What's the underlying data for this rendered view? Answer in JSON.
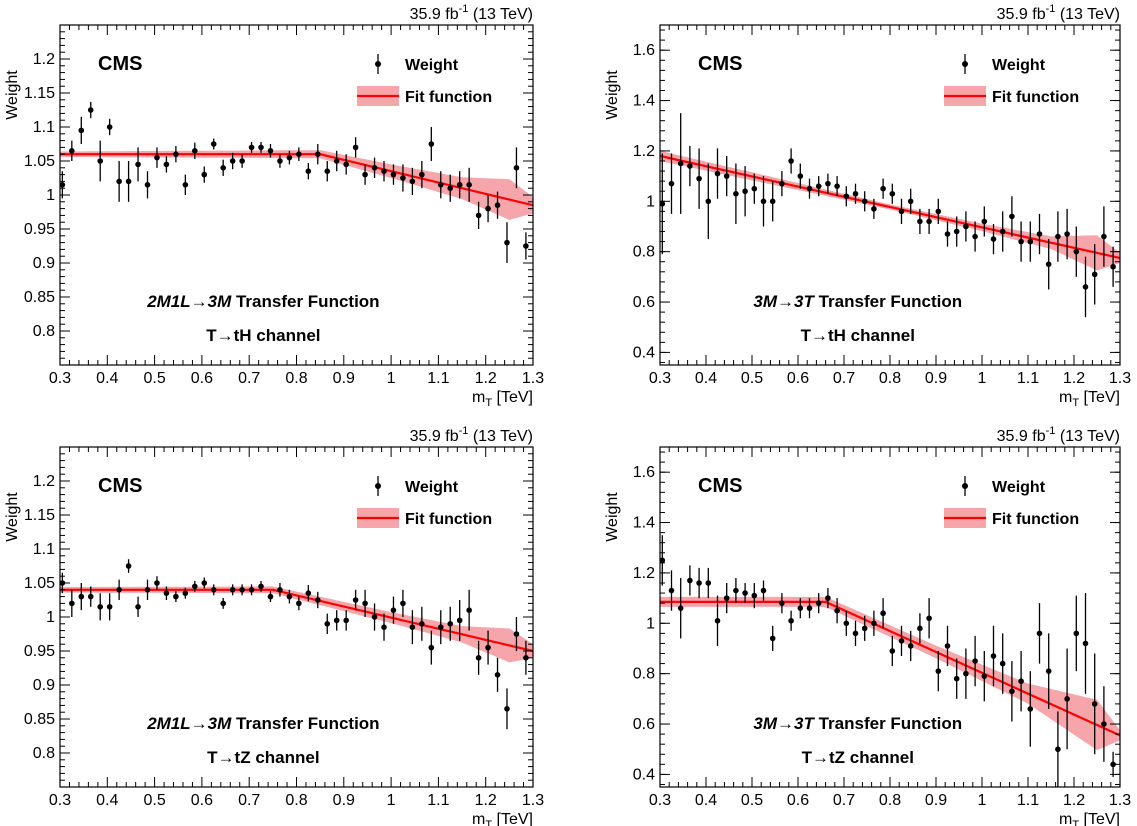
{
  "colors": {
    "points": "#000000",
    "fit_line": "#ff0000",
    "fit_band": "#f6a6ab",
    "frame": "#000000"
  },
  "chart_data": [
    {
      "type": "scatter",
      "lumi": "35.9 fb⁻¹ (13 TeV)",
      "experiment": "CMS",
      "legend": {
        "points": "Weight",
        "fit": "Fit function",
        "placement": "top-right"
      },
      "title_line1_italic": "2M1L→3M",
      "title_line1_rest": " Transfer Function",
      "title_line2": "T→tH channel",
      "xlabel": "m_T [TeV]",
      "ylabel": "Weight",
      "xlim": [
        0.3,
        1.3
      ],
      "ylim": [
        0.75,
        1.25
      ],
      "xticks": [
        "0.3",
        "0.4",
        "0.5",
        "0.6",
        "0.7",
        "0.8",
        "0.9",
        "1",
        "1.1",
        "1.2",
        "1.3"
      ],
      "yticks": [
        "0.8",
        "0.85",
        "0.9",
        "0.95",
        "1",
        "1.05",
        "1.1",
        "1.15",
        "1.2"
      ],
      "series_points": {
        "x": [
          0.305,
          0.325,
          0.345,
          0.365,
          0.385,
          0.405,
          0.425,
          0.445,
          0.465,
          0.485,
          0.505,
          0.525,
          0.545,
          0.565,
          0.585,
          0.605,
          0.625,
          0.645,
          0.665,
          0.685,
          0.705,
          0.725,
          0.745,
          0.765,
          0.785,
          0.805,
          0.825,
          0.845,
          0.865,
          0.885,
          0.905,
          0.925,
          0.945,
          0.965,
          0.985,
          1.005,
          1.025,
          1.045,
          1.065,
          1.085,
          1.105,
          1.125,
          1.145,
          1.165,
          1.185,
          1.205,
          1.225,
          1.245,
          1.265,
          1.285
        ],
        "y": [
          1.015,
          1.065,
          1.095,
          1.125,
          1.05,
          1.1,
          1.02,
          1.02,
          1.045,
          1.015,
          1.055,
          1.045,
          1.06,
          1.015,
          1.065,
          1.03,
          1.075,
          1.04,
          1.05,
          1.05,
          1.07,
          1.07,
          1.065,
          1.05,
          1.055,
          1.06,
          1.035,
          1.06,
          1.035,
          1.05,
          1.045,
          1.07,
          1.03,
          1.04,
          1.035,
          1.03,
          1.025,
          1.02,
          1.03,
          1.075,
          1.015,
          1.01,
          1.015,
          1.015,
          0.97,
          0.98,
          0.985,
          0.93,
          1.04,
          0.925
        ],
        "err": [
          0.02,
          0.015,
          0.02,
          0.012,
          0.03,
          0.012,
          0.03,
          0.03,
          0.025,
          0.02,
          0.015,
          0.012,
          0.012,
          0.015,
          0.012,
          0.012,
          0.008,
          0.012,
          0.012,
          0.01,
          0.008,
          0.008,
          0.01,
          0.01,
          0.01,
          0.01,
          0.012,
          0.015,
          0.015,
          0.015,
          0.015,
          0.015,
          0.015,
          0.015,
          0.015,
          0.015,
          0.02,
          0.02,
          0.02,
          0.025,
          0.02,
          0.02,
          0.02,
          0.025,
          0.02,
          0.02,
          0.02,
          0.03,
          0.03,
          0.02
        ]
      },
      "fit": {
        "x": [
          0.3,
          0.85,
          1.3
        ],
        "y": [
          1.06,
          1.06,
          0.985
        ],
        "band_x": [
          0.3,
          0.85,
          1.0,
          1.15,
          1.25,
          1.3
        ],
        "band_half_width": [
          0.004,
          0.006,
          0.01,
          0.016,
          0.03,
          0.012
        ]
      }
    },
    {
      "type": "scatter",
      "lumi": "35.9 fb⁻¹ (13 TeV)",
      "experiment": "CMS",
      "legend": {
        "points": "Weight",
        "fit": "Fit function",
        "placement": "top-right"
      },
      "title_line1_italic": "3M→3T",
      "title_line1_rest": " Transfer Function",
      "title_line2": "T→tH channel",
      "xlabel": "m_T [TeV]",
      "ylabel": "Weight",
      "xlim": [
        0.3,
        1.3
      ],
      "ylim": [
        0.35,
        1.7
      ],
      "xticks": [
        "0.3",
        "0.4",
        "0.5",
        "0.6",
        "0.7",
        "0.8",
        "0.9",
        "1",
        "1.1",
        "1.2",
        "1.3"
      ],
      "yticks": [
        "0.4",
        "0.6",
        "0.8",
        "1",
        "1.2",
        "1.4",
        "1.6"
      ],
      "series_points": {
        "x": [
          0.305,
          0.325,
          0.345,
          0.365,
          0.385,
          0.405,
          0.425,
          0.445,
          0.465,
          0.485,
          0.505,
          0.525,
          0.545,
          0.565,
          0.585,
          0.605,
          0.625,
          0.645,
          0.665,
          0.685,
          0.705,
          0.725,
          0.745,
          0.765,
          0.785,
          0.805,
          0.825,
          0.845,
          0.865,
          0.885,
          0.905,
          0.925,
          0.945,
          0.965,
          0.985,
          1.005,
          1.025,
          1.045,
          1.065,
          1.085,
          1.105,
          1.125,
          1.145,
          1.165,
          1.185,
          1.205,
          1.225,
          1.245,
          1.265,
          1.285
        ],
        "y": [
          0.99,
          1.07,
          1.15,
          1.14,
          1.09,
          1.0,
          1.11,
          1.1,
          1.03,
          1.04,
          1.05,
          1.0,
          1.0,
          1.07,
          1.16,
          1.1,
          1.05,
          1.06,
          1.07,
          1.06,
          1.02,
          1.03,
          1.0,
          0.97,
          1.05,
          1.03,
          0.96,
          1.0,
          0.92,
          0.92,
          0.96,
          0.87,
          0.88,
          0.9,
          0.86,
          0.92,
          0.85,
          0.88,
          0.94,
          0.84,
          0.84,
          0.87,
          0.75,
          0.86,
          0.87,
          0.8,
          0.66,
          0.71,
          0.86,
          0.74
        ],
        "err": [
          0.2,
          0.12,
          0.2,
          0.08,
          0.12,
          0.15,
          0.1,
          0.08,
          0.12,
          0.1,
          0.06,
          0.1,
          0.08,
          0.05,
          0.05,
          0.05,
          0.04,
          0.04,
          0.04,
          0.04,
          0.04,
          0.04,
          0.04,
          0.04,
          0.04,
          0.04,
          0.05,
          0.05,
          0.05,
          0.05,
          0.05,
          0.05,
          0.06,
          0.06,
          0.06,
          0.06,
          0.06,
          0.08,
          0.08,
          0.08,
          0.08,
          0.08,
          0.1,
          0.1,
          0.1,
          0.1,
          0.12,
          0.12,
          0.12,
          0.08
        ]
      },
      "fit": {
        "x": [
          0.3,
          1.3
        ],
        "y": [
          1.18,
          0.775
        ],
        "band_x": [
          0.3,
          0.8,
          1.0,
          1.15,
          1.25,
          1.3
        ],
        "band_half_width": [
          0.02,
          0.01,
          0.015,
          0.025,
          0.07,
          0.02
        ]
      }
    },
    {
      "type": "scatter",
      "lumi": "35.9 fb⁻¹ (13 TeV)",
      "experiment": "CMS",
      "legend": {
        "points": "Weight",
        "fit": "Fit function",
        "placement": "top-right"
      },
      "title_line1_italic": "2M1L→3M",
      "title_line1_rest": " Transfer Function",
      "title_line2": "T→tZ channel",
      "xlabel": "m_T [TeV]",
      "ylabel": "Weight",
      "xlim": [
        0.3,
        1.3
      ],
      "ylim": [
        0.75,
        1.25
      ],
      "xticks": [
        "0.3",
        "0.4",
        "0.5",
        "0.6",
        "0.7",
        "0.8",
        "0.9",
        "1",
        "1.1",
        "1.2",
        "1.3"
      ],
      "yticks": [
        "0.8",
        "0.85",
        "0.9",
        "0.95",
        "1",
        "1.05",
        "1.1",
        "1.15",
        "1.2"
      ],
      "series_points": {
        "x": [
          0.305,
          0.325,
          0.345,
          0.365,
          0.385,
          0.405,
          0.425,
          0.445,
          0.465,
          0.485,
          0.505,
          0.525,
          0.545,
          0.565,
          0.585,
          0.605,
          0.625,
          0.645,
          0.665,
          0.685,
          0.705,
          0.725,
          0.745,
          0.765,
          0.785,
          0.805,
          0.825,
          0.845,
          0.865,
          0.885,
          0.905,
          0.925,
          0.945,
          0.965,
          0.985,
          1.005,
          1.025,
          1.045,
          1.065,
          1.085,
          1.105,
          1.125,
          1.145,
          1.165,
          1.185,
          1.205,
          1.225,
          1.245,
          1.265,
          1.285
        ],
        "y": [
          1.05,
          1.02,
          1.03,
          1.03,
          1.015,
          1.015,
          1.04,
          1.075,
          1.015,
          1.04,
          1.05,
          1.035,
          1.03,
          1.035,
          1.045,
          1.05,
          1.04,
          1.02,
          1.04,
          1.04,
          1.04,
          1.045,
          1.03,
          1.04,
          1.03,
          1.02,
          1.035,
          1.025,
          0.99,
          0.995,
          0.995,
          1.025,
          1.02,
          1.0,
          0.985,
          1.01,
          1.02,
          0.985,
          0.99,
          0.955,
          0.985,
          0.99,
          0.995,
          1.01,
          0.94,
          0.955,
          0.915,
          0.865,
          0.975,
          0.94
        ],
        "err": [
          0.015,
          0.02,
          0.02,
          0.015,
          0.02,
          0.02,
          0.015,
          0.01,
          0.015,
          0.015,
          0.01,
          0.01,
          0.008,
          0.008,
          0.008,
          0.008,
          0.008,
          0.008,
          0.008,
          0.008,
          0.008,
          0.008,
          0.008,
          0.01,
          0.01,
          0.01,
          0.012,
          0.012,
          0.015,
          0.015,
          0.015,
          0.015,
          0.02,
          0.02,
          0.02,
          0.02,
          0.02,
          0.025,
          0.025,
          0.025,
          0.025,
          0.025,
          0.03,
          0.03,
          0.025,
          0.025,
          0.025,
          0.03,
          0.025,
          0.025
        ]
      },
      "fit": {
        "x": [
          0.3,
          0.75,
          1.3
        ],
        "y": [
          1.04,
          1.04,
          0.95
        ],
        "band_x": [
          0.3,
          0.75,
          1.0,
          1.15,
          1.25,
          1.3
        ],
        "band_half_width": [
          0.004,
          0.005,
          0.008,
          0.012,
          0.025,
          0.01
        ]
      }
    },
    {
      "type": "scatter",
      "lumi": "35.9 fb⁻¹ (13 TeV)",
      "experiment": "CMS",
      "legend": {
        "points": "Weight",
        "fit": "Fit function",
        "placement": "top-right"
      },
      "title_line1_italic": "3M→3T",
      "title_line1_rest": " Transfer Function",
      "title_line2": "T→tZ channel",
      "xlabel": "m_T [TeV]",
      "ylabel": "Weight",
      "xlim": [
        0.3,
        1.3
      ],
      "ylim": [
        0.35,
        1.7
      ],
      "xticks": [
        "0.3",
        "0.4",
        "0.5",
        "0.6",
        "0.7",
        "0.8",
        "0.9",
        "1",
        "1.1",
        "1.2",
        "1.3"
      ],
      "yticks": [
        "0.4",
        "0.6",
        "0.8",
        "1",
        "1.2",
        "1.4",
        "1.6"
      ],
      "series_points": {
        "x": [
          0.305,
          0.325,
          0.345,
          0.365,
          0.385,
          0.405,
          0.425,
          0.445,
          0.465,
          0.485,
          0.505,
          0.525,
          0.545,
          0.565,
          0.585,
          0.605,
          0.625,
          0.645,
          0.665,
          0.685,
          0.705,
          0.725,
          0.745,
          0.765,
          0.785,
          0.805,
          0.825,
          0.845,
          0.865,
          0.885,
          0.905,
          0.925,
          0.945,
          0.965,
          0.985,
          1.005,
          1.025,
          1.045,
          1.065,
          1.085,
          1.105,
          1.125,
          1.145,
          1.165,
          1.185,
          1.205,
          1.225,
          1.245,
          1.265,
          1.285
        ],
        "y": [
          1.25,
          1.13,
          1.06,
          1.17,
          1.16,
          1.16,
          1.01,
          1.1,
          1.13,
          1.12,
          1.11,
          1.13,
          0.94,
          1.08,
          1.01,
          1.06,
          1.06,
          1.08,
          1.1,
          1.05,
          1.0,
          0.96,
          0.98,
          1.0,
          1.04,
          0.89,
          0.93,
          0.91,
          0.98,
          1.02,
          0.81,
          0.91,
          0.78,
          0.8,
          0.85,
          0.79,
          0.87,
          0.84,
          0.73,
          0.77,
          0.66,
          0.96,
          0.81,
          0.5,
          0.7,
          0.96,
          0.92,
          0.68,
          0.6,
          0.44
        ],
        "err": [
          0.1,
          0.08,
          0.12,
          0.06,
          0.06,
          0.06,
          0.1,
          0.06,
          0.05,
          0.04,
          0.05,
          0.04,
          0.05,
          0.04,
          0.04,
          0.04,
          0.04,
          0.04,
          0.04,
          0.05,
          0.05,
          0.05,
          0.05,
          0.05,
          0.06,
          0.06,
          0.06,
          0.06,
          0.06,
          0.08,
          0.08,
          0.08,
          0.08,
          0.1,
          0.1,
          0.1,
          0.12,
          0.12,
          0.12,
          0.12,
          0.15,
          0.12,
          0.15,
          0.15,
          0.2,
          0.15,
          0.2,
          0.2,
          0.15,
          0.05
        ]
      },
      "fit": {
        "x": [
          0.3,
          0.66,
          1.3
        ],
        "y": [
          1.085,
          1.085,
          0.555
        ],
        "band_x": [
          0.3,
          0.66,
          0.9,
          1.1,
          1.25,
          1.3
        ],
        "band_half_width": [
          0.02,
          0.02,
          0.025,
          0.04,
          0.1,
          0.02
        ]
      }
    }
  ]
}
